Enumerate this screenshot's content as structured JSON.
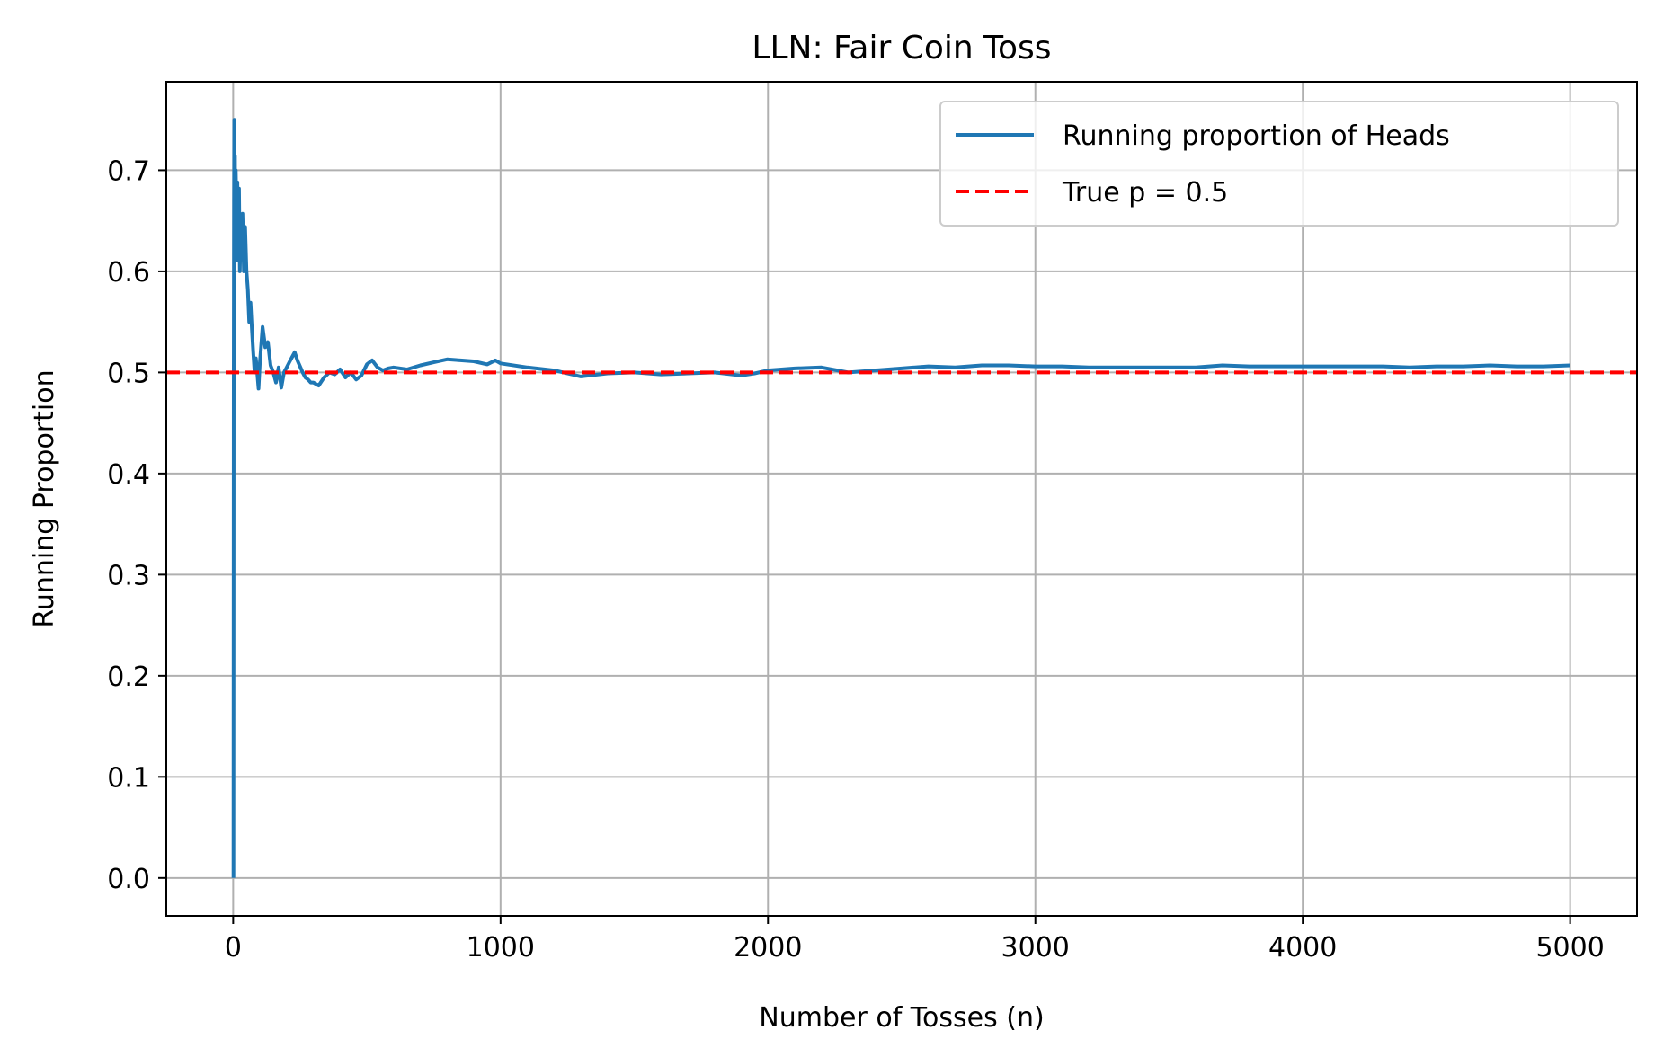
{
  "chart_data": {
    "type": "line",
    "title": "LLN: Fair Coin Toss",
    "xlabel": "Number of Tosses (n)",
    "ylabel": "Running Proportion",
    "xlim": [
      -250,
      5250
    ],
    "ylim": [
      -0.0375,
      0.7875
    ],
    "x_ticks": [
      0,
      1000,
      2000,
      3000,
      4000,
      5000
    ],
    "y_ticks": [
      0.0,
      0.1,
      0.2,
      0.3,
      0.4,
      0.5,
      0.6,
      0.7
    ],
    "x_tick_labels": [
      "0",
      "1000",
      "2000",
      "3000",
      "4000",
      "5000"
    ],
    "y_tick_labels": [
      "0.0",
      "0.1",
      "0.2",
      "0.3",
      "0.4",
      "0.5",
      "0.6",
      "0.7"
    ],
    "grid": true,
    "legend_position": "top-right",
    "series": [
      {
        "name": "Running proportion of Heads",
        "color": "#1f77b4",
        "style": "solid",
        "x": [
          1,
          2,
          3,
          4,
          5,
          7,
          8,
          10,
          12,
          14,
          16,
          18,
          20,
          22,
          25,
          28,
          31,
          35,
          40,
          45,
          50,
          55,
          60,
          65,
          70,
          75,
          80,
          85,
          90,
          95,
          100,
          110,
          120,
          130,
          140,
          150,
          160,
          170,
          180,
          190,
          200,
          210,
          220,
          230,
          240,
          250,
          260,
          270,
          280,
          290,
          300,
          320,
          340,
          360,
          380,
          400,
          420,
          440,
          460,
          480,
          500,
          520,
          540,
          560,
          580,
          600,
          650,
          700,
          750,
          800,
          850,
          900,
          950,
          980,
          1000,
          1100,
          1200,
          1300,
          1400,
          1500,
          1600,
          1700,
          1800,
          1900,
          1950,
          2000,
          2100,
          2200,
          2300,
          2400,
          2500,
          2600,
          2700,
          2800,
          2900,
          3000,
          3100,
          3200,
          3300,
          3400,
          3500,
          3600,
          3700,
          3800,
          3900,
          4000,
          4100,
          4200,
          4300,
          4400,
          4500,
          4600,
          4700,
          4800,
          4900,
          5000
        ],
        "values": [
          0.0,
          0.5,
          0.667,
          0.75,
          0.6,
          0.714,
          0.625,
          0.7,
          0.667,
          0.643,
          0.688,
          0.611,
          0.65,
          0.682,
          0.6,
          0.643,
          0.613,
          0.657,
          0.6,
          0.644,
          0.6,
          0.582,
          0.55,
          0.569,
          0.543,
          0.52,
          0.5,
          0.514,
          0.5,
          0.484,
          0.51,
          0.545,
          0.525,
          0.53,
          0.507,
          0.5,
          0.49,
          0.505,
          0.485,
          0.5,
          0.505,
          0.51,
          0.515,
          0.52,
          0.512,
          0.506,
          0.5,
          0.495,
          0.493,
          0.49,
          0.49,
          0.487,
          0.495,
          0.5,
          0.498,
          0.503,
          0.495,
          0.5,
          0.493,
          0.497,
          0.508,
          0.512,
          0.505,
          0.502,
          0.504,
          0.505,
          0.503,
          0.507,
          0.51,
          0.513,
          0.512,
          0.511,
          0.508,
          0.512,
          0.509,
          0.505,
          0.502,
          0.496,
          0.499,
          0.5,
          0.498,
          0.499,
          0.5,
          0.497,
          0.499,
          0.502,
          0.504,
          0.505,
          0.5,
          0.502,
          0.504,
          0.506,
          0.505,
          0.507,
          0.507,
          0.506,
          0.506,
          0.505,
          0.505,
          0.505,
          0.505,
          0.505,
          0.507,
          0.506,
          0.506,
          0.506,
          0.506,
          0.506,
          0.506,
          0.505,
          0.506,
          0.506,
          0.507,
          0.506,
          0.506,
          0.507
        ]
      },
      {
        "name": "True p = 0.5",
        "color": "#ff0000",
        "style": "dashed",
        "value": 0.5
      }
    ]
  }
}
